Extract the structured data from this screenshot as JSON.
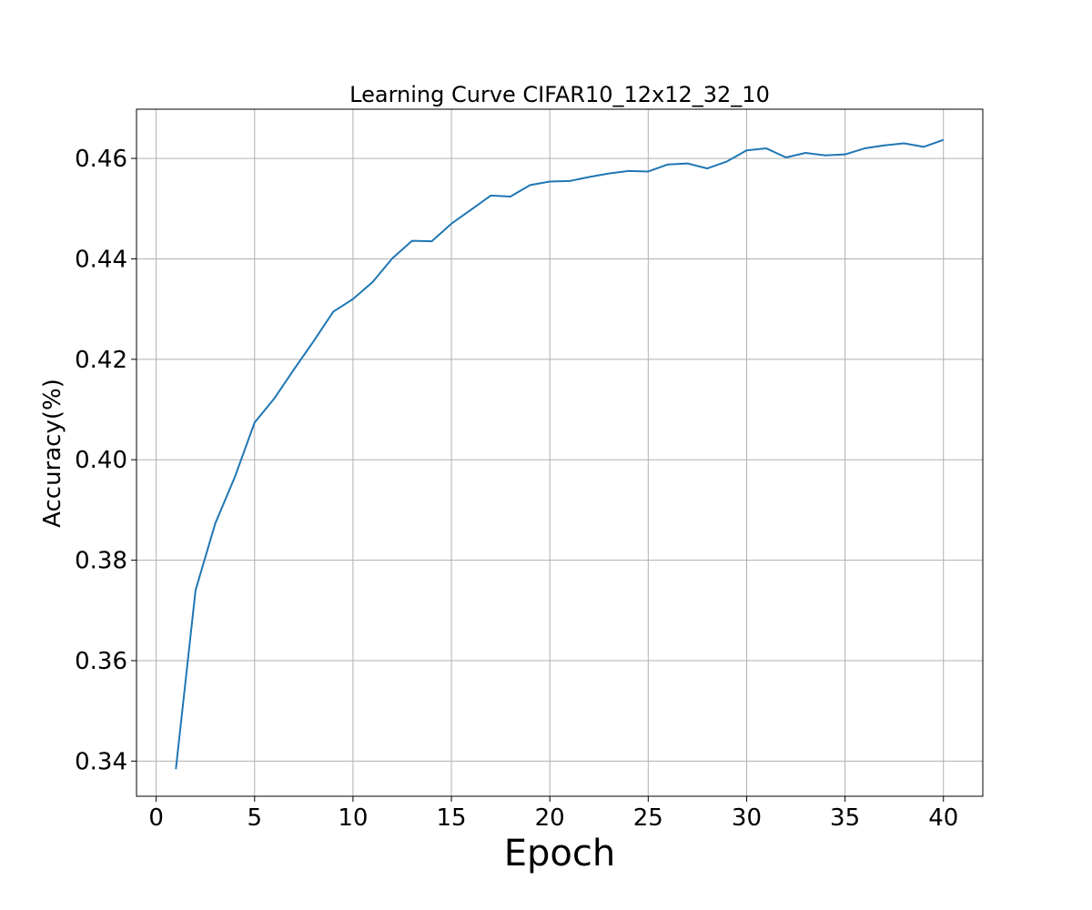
{
  "chart_data": {
    "type": "line",
    "title": "Learning Curve CIFAR10_12x12_32_10",
    "xlabel": "Epoch",
    "ylabel": "Accuracy(%)",
    "xlim": [
      -1,
      42
    ],
    "ylim": [
      0.333,
      0.4698
    ],
    "xticks": [
      0,
      5,
      10,
      15,
      20,
      25,
      30,
      35,
      40
    ],
    "xtick_labels": [
      "0",
      "5",
      "10",
      "15",
      "20",
      "25",
      "30",
      "35",
      "40"
    ],
    "yticks": [
      0.34,
      0.36,
      0.38,
      0.4,
      0.42,
      0.44,
      0.46
    ],
    "ytick_labels": [
      "0.34",
      "0.36",
      "0.38",
      "0.40",
      "0.42",
      "0.44",
      "0.46"
    ],
    "grid": true,
    "series": [
      {
        "color": "#1f77b4",
        "x": [
          1,
          2,
          3,
          4,
          5,
          6,
          7,
          8,
          9,
          10,
          11,
          12,
          13,
          14,
          15,
          16,
          17,
          18,
          19,
          20,
          21,
          22,
          23,
          24,
          25,
          26,
          27,
          28,
          29,
          30,
          31,
          32,
          33,
          34,
          35,
          36,
          37,
          38,
          39,
          40
        ],
        "y": [
          0.3384,
          0.374,
          0.3873,
          0.3966,
          0.4074,
          0.4122,
          0.418,
          0.4236,
          0.4295,
          0.432,
          0.4354,
          0.4401,
          0.4436,
          0.4435,
          0.447,
          0.4498,
          0.4526,
          0.4524,
          0.4547,
          0.4554,
          0.4555,
          0.4563,
          0.457,
          0.4575,
          0.4574,
          0.4588,
          0.459,
          0.458,
          0.4594,
          0.4616,
          0.462,
          0.4602,
          0.4611,
          0.4606,
          0.4608,
          0.462,
          0.4626,
          0.463,
          0.4623,
          0.4637
        ]
      }
    ]
  }
}
